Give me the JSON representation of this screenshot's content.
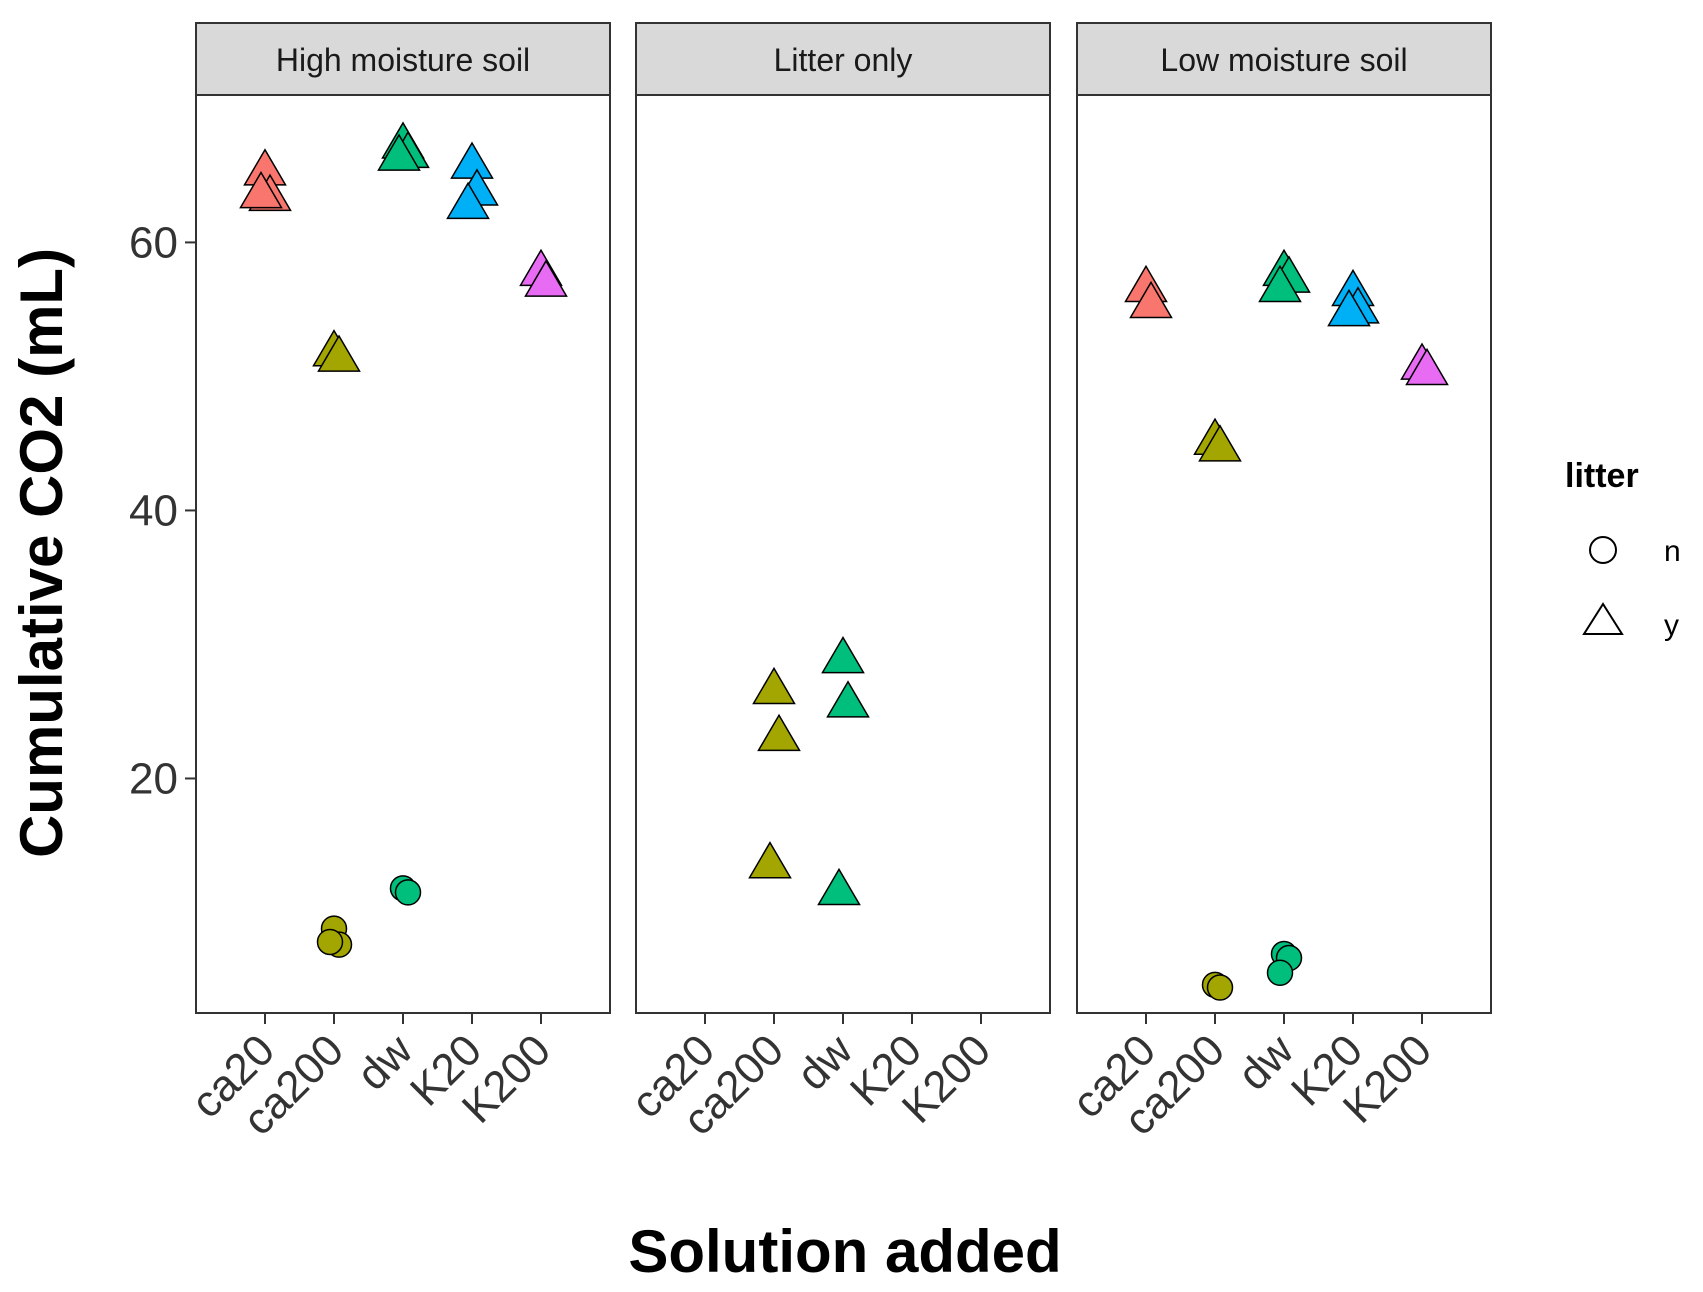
{
  "chart_data": {
    "type": "scatter",
    "facet_by": "soil",
    "panels": [
      "High moisture soil",
      "Litter only",
      "Low moisture soil"
    ],
    "categories": [
      "ca20",
      "ca200",
      "dw",
      "K20",
      "K200"
    ],
    "xlabel": "Solution added",
    "ylabel": "Cumulative CO2 (mL)",
    "ylim": [
      2.5,
      71
    ],
    "yticks": [
      20,
      40,
      60
    ],
    "grid": false,
    "legend": {
      "title": "litter",
      "placement": "right",
      "items": [
        {
          "label": "n",
          "shape": "circle"
        },
        {
          "label": "y",
          "shape": "triangle"
        }
      ]
    },
    "colors": {
      "ca20": "#F8766D",
      "ca200": "#A3A500",
      "dw": "#00BF7D",
      "K20": "#00B0F6",
      "K200": "#E76BF3"
    },
    "points": [
      {
        "panel": 0,
        "category": "ca20",
        "litter": "y",
        "y": 65.5
      },
      {
        "panel": 0,
        "category": "ca20",
        "litter": "y",
        "y": 63.6
      },
      {
        "panel": 0,
        "category": "ca20",
        "litter": "y",
        "y": 63.8
      },
      {
        "panel": 0,
        "category": "ca200",
        "litter": "y",
        "y": 52.0
      },
      {
        "panel": 0,
        "category": "ca200",
        "litter": "y",
        "y": 51.6
      },
      {
        "panel": 0,
        "category": "ca200",
        "litter": "n",
        "y": 8.8
      },
      {
        "panel": 0,
        "category": "ca200",
        "litter": "n",
        "y": 7.6
      },
      {
        "panel": 0,
        "category": "ca200",
        "litter": "n",
        "y": 7.8
      },
      {
        "panel": 0,
        "category": "dw",
        "litter": "y",
        "y": 67.5
      },
      {
        "panel": 0,
        "category": "dw",
        "litter": "y",
        "y": 66.8
      },
      {
        "panel": 0,
        "category": "dw",
        "litter": "y",
        "y": 66.6
      },
      {
        "panel": 0,
        "category": "dw",
        "litter": "n",
        "y": 11.8
      },
      {
        "panel": 0,
        "category": "dw",
        "litter": "n",
        "y": 11.5
      },
      {
        "panel": 0,
        "category": "K20",
        "litter": "y",
        "y": 66.0
      },
      {
        "panel": 0,
        "category": "K20",
        "litter": "y",
        "y": 64.0
      },
      {
        "panel": 0,
        "category": "K20",
        "litter": "y",
        "y": 63.0
      },
      {
        "panel": 0,
        "category": "K200",
        "litter": "y",
        "y": 58.0
      },
      {
        "panel": 0,
        "category": "K200",
        "litter": "y",
        "y": 57.2
      },
      {
        "panel": 1,
        "category": "ca200",
        "litter": "y",
        "y": 26.8
      },
      {
        "panel": 1,
        "category": "ca200",
        "litter": "y",
        "y": 23.3
      },
      {
        "panel": 1,
        "category": "ca200",
        "litter": "y",
        "y": 13.8
      },
      {
        "panel": 1,
        "category": "dw",
        "litter": "y",
        "y": 29.1
      },
      {
        "panel": 1,
        "category": "dw",
        "litter": "y",
        "y": 25.8
      },
      {
        "panel": 1,
        "category": "dw",
        "litter": "y",
        "y": 11.8
      },
      {
        "panel": 2,
        "category": "ca20",
        "litter": "y",
        "y": 56.8
      },
      {
        "panel": 2,
        "category": "ca20",
        "litter": "y",
        "y": 55.6
      },
      {
        "panel": 2,
        "category": "ca200",
        "litter": "y",
        "y": 45.4
      },
      {
        "panel": 2,
        "category": "ca200",
        "litter": "y",
        "y": 44.9
      },
      {
        "panel": 2,
        "category": "ca200",
        "litter": "n",
        "y": 4.6
      },
      {
        "panel": 2,
        "category": "ca200",
        "litter": "n",
        "y": 4.4
      },
      {
        "panel": 2,
        "category": "dw",
        "litter": "y",
        "y": 58.0
      },
      {
        "panel": 2,
        "category": "dw",
        "litter": "y",
        "y": 57.5
      },
      {
        "panel": 2,
        "category": "dw",
        "litter": "y",
        "y": 56.8
      },
      {
        "panel": 2,
        "category": "dw",
        "litter": "n",
        "y": 6.9
      },
      {
        "panel": 2,
        "category": "dw",
        "litter": "n",
        "y": 6.6
      },
      {
        "panel": 2,
        "category": "dw",
        "litter": "n",
        "y": 5.5
      },
      {
        "panel": 2,
        "category": "K20",
        "litter": "y",
        "y": 56.5
      },
      {
        "panel": 2,
        "category": "K20",
        "litter": "y",
        "y": 55.2
      },
      {
        "panel": 2,
        "category": "K20",
        "litter": "y",
        "y": 55.0
      },
      {
        "panel": 2,
        "category": "K200",
        "litter": "y",
        "y": 51.0
      },
      {
        "panel": 2,
        "category": "K200",
        "litter": "y",
        "y": 50.6
      }
    ]
  }
}
